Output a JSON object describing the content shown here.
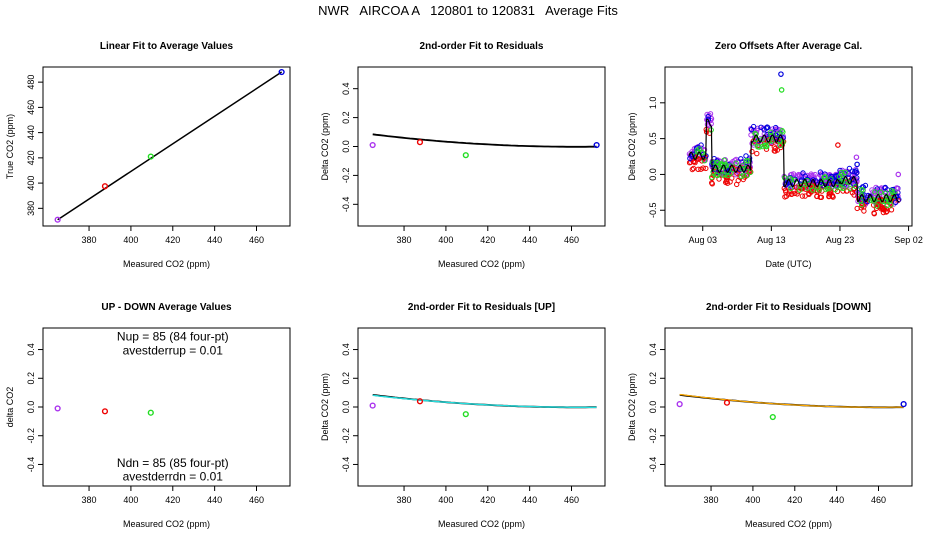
{
  "page_title": "NWR   AIRCOA A   120801 to 120831   Average Fits",
  "colors": {
    "blue": "#0000dd",
    "red": "#ee0000",
    "green": "#22dd22",
    "purple": "#aa33ee",
    "black": "#000000",
    "cyan": "#22dddd",
    "orange": "#ffaa00"
  },
  "chart_data": [
    {
      "id": "p1",
      "type": "scatter",
      "title": "Linear Fit to Average Values",
      "xlabel": "Measured CO2 (ppm)",
      "ylabel": "True CO2 (ppm)",
      "xlim": [
        358,
        476
      ],
      "ylim": [
        366,
        492
      ],
      "xticks": [
        380,
        400,
        420,
        440,
        460
      ],
      "yticks": [
        380,
        400,
        420,
        440,
        460,
        480
      ],
      "ytick_rotate": true,
      "points": [
        {
          "x": 365,
          "y": 371,
          "color": "purple"
        },
        {
          "x": 387.6,
          "y": 397.5,
          "color": "red"
        },
        {
          "x": 409.5,
          "y": 421,
          "color": "green"
        },
        {
          "x": 472,
          "y": 488,
          "color": "blue"
        }
      ],
      "lines": [
        {
          "x": [
            365,
            472
          ],
          "y": [
            371,
            488
          ],
          "color": "black",
          "width": 1.5
        }
      ]
    },
    {
      "id": "p2",
      "type": "scatter",
      "title": "2nd-order Fit to Residuals",
      "xlabel": "Measured CO2 (ppm)",
      "ylabel": "Delta CO2 (ppm)",
      "xlim": [
        358,
        476
      ],
      "ylim": [
        -0.55,
        0.55
      ],
      "xticks": [
        380,
        400,
        420,
        440,
        460
      ],
      "yticks": [
        -0.4,
        -0.2,
        0.0,
        0.2,
        0.4
      ],
      "ytick_rotate": true,
      "points": [
        {
          "x": 365,
          "y": 0.01,
          "color": "purple"
        },
        {
          "x": 387.6,
          "y": 0.03,
          "color": "red"
        },
        {
          "x": 409.5,
          "y": -0.06,
          "color": "green"
        },
        {
          "x": 472,
          "y": 0.01,
          "color": "blue"
        }
      ],
      "curves": [
        {
          "coeffs": [
            0.0226,
            -0.0386,
            0.0145
          ],
          "xrange": [
            365,
            472
          ],
          "color": "black",
          "width": 1.8
        }
      ]
    },
    {
      "id": "p3",
      "type": "scatter",
      "title": "Zero Offsets After Average Cal.",
      "xlabel": "Date (UTC)",
      "ylabel": "Delta CO2 (ppm)",
      "xlim": [
        -3.5,
        32.5
      ],
      "ylim": [
        -0.72,
        1.5
      ],
      "xticks": [
        2,
        12,
        22,
        32
      ],
      "xtick_labels": [
        "Aug 03",
        "Aug 13",
        "Aug 23",
        "Sep 02"
      ],
      "yticks": [
        -0.5,
        0.0,
        0.5,
        1.0
      ],
      "ytick_labels": [
        "-0.5",
        "0.0",
        "0.5",
        "1.0"
      ],
      "ytick_rotate": true,
      "baseline": [
        {
          "from": 0,
          "to": 2.5,
          "level": 0.26,
          "amp": 0.1
        },
        {
          "from": 2.5,
          "to": 3.3,
          "level": 0.72,
          "amp": 0.1
        },
        {
          "from": 3.3,
          "to": 9.0,
          "level": 0.08,
          "amp": 0.12
        },
        {
          "from": 9.0,
          "to": 13.8,
          "level": 0.5,
          "amp": 0.12
        },
        {
          "from": 13.8,
          "to": 22.0,
          "level": -0.12,
          "amp": 0.1
        },
        {
          "from": 22.0,
          "to": 24.5,
          "level": -0.08,
          "amp": 0.12
        },
        {
          "from": 24.5,
          "to": 30.6,
          "level": -0.33,
          "amp": 0.12
        }
      ],
      "series_offsets": [
        {
          "color": "purple",
          "offset": 0.03,
          "count": 420
        },
        {
          "color": "red",
          "offset": -0.1,
          "count": 200
        },
        {
          "color": "blue",
          "offset": 0.06,
          "count": 130
        },
        {
          "color": "green",
          "offset": 0.0,
          "count": 130
        }
      ],
      "outliers": [
        {
          "x": 13.4,
          "y": 1.4,
          "color": "blue"
        },
        {
          "x": 13.5,
          "y": 1.18,
          "color": "green"
        },
        {
          "x": 21.7,
          "y": 0.41,
          "color": "red"
        },
        {
          "x": 24.4,
          "y": 0.24,
          "color": "purple"
        },
        {
          "x": 24.5,
          "y": 0.14,
          "color": "blue"
        },
        {
          "x": 30.5,
          "y": 0.0,
          "color": "purple"
        },
        {
          "x": 30.4,
          "y": -0.2,
          "color": "purple"
        }
      ]
    },
    {
      "id": "p4",
      "type": "scatter",
      "title": "UP - DOWN Average Values",
      "xlabel": "Measured CO2 (ppm)",
      "ylabel": "delta CO2",
      "xlim": [
        358,
        476
      ],
      "ylim": [
        -0.55,
        0.55
      ],
      "xticks": [
        380,
        400,
        420,
        440,
        460
      ],
      "yticks": [
        -0.4,
        -0.2,
        0.0,
        0.2,
        0.4
      ],
      "ytick_rotate": true,
      "points": [
        {
          "x": 365,
          "y": -0.01,
          "color": "purple"
        },
        {
          "x": 387.6,
          "y": -0.03,
          "color": "red"
        },
        {
          "x": 409.5,
          "y": -0.04,
          "color": "green"
        }
      ],
      "annotations": [
        {
          "x": 420,
          "y": 0.49,
          "text": "Nup = 85 (84 four-pt)"
        },
        {
          "x": 420,
          "y": 0.395,
          "text": "avestderrup =  0.01"
        },
        {
          "x": 420,
          "y": -0.39,
          "text": "Ndn = 85 (85 four-pt)"
        },
        {
          "x": 420,
          "y": -0.485,
          "text": "avestderrdn =  0.01"
        }
      ]
    },
    {
      "id": "p5",
      "type": "scatter",
      "title": "2nd-order Fit to Residuals [UP]",
      "xlabel": "Measured CO2 (ppm)",
      "ylabel": "Delta CO2 (ppm)",
      "xlim": [
        358,
        476
      ],
      "ylim": [
        -0.55,
        0.55
      ],
      "xticks": [
        380,
        400,
        420,
        440,
        460
      ],
      "yticks": [
        -0.4,
        -0.2,
        0.0,
        0.2,
        0.4
      ],
      "ytick_rotate": true,
      "points": [
        {
          "x": 365,
          "y": 0.01,
          "color": "purple"
        },
        {
          "x": 387.6,
          "y": 0.04,
          "color": "red"
        },
        {
          "x": 409.5,
          "y": -0.05,
          "color": "green"
        }
      ],
      "curves": [
        {
          "coeffs": [
            0.0226,
            -0.0386,
            0.0145
          ],
          "xrange": [
            365,
            472
          ],
          "color": "black",
          "width": 1.8
        },
        {
          "coeffs": [
            0.0206,
            -0.0376,
            0.015
          ],
          "xrange": [
            365,
            472
          ],
          "color": "cyan",
          "width": 1.4
        }
      ]
    },
    {
      "id": "p6",
      "type": "scatter",
      "title": "2nd-order Fit to Residuals [DOWN]",
      "xlabel": "Measured CO2 (ppm)",
      "ylabel": "Delta CO2 (ppm)",
      "xlim": [
        358,
        476
      ],
      "ylim": [
        -0.55,
        0.55
      ],
      "xticks": [
        380,
        400,
        420,
        440,
        460
      ],
      "yticks": [
        -0.4,
        -0.2,
        0.0,
        0.2,
        0.4
      ],
      "ytick_rotate": true,
      "points": [
        {
          "x": 365,
          "y": 0.02,
          "color": "purple"
        },
        {
          "x": 387.6,
          "y": 0.03,
          "color": "red"
        },
        {
          "x": 409.5,
          "y": -0.07,
          "color": "green"
        },
        {
          "x": 472,
          "y": 0.02,
          "color": "blue"
        }
      ],
      "curves": [
        {
          "coeffs": [
            0.0226,
            -0.0386,
            0.0145
          ],
          "xrange": [
            365,
            472
          ],
          "color": "black",
          "width": 1.8
        },
        {
          "coeffs": [
            0.0246,
            -0.0396,
            0.014
          ],
          "xrange": [
            365,
            472
          ],
          "color": "orange",
          "width": 1.2
        }
      ]
    }
  ]
}
